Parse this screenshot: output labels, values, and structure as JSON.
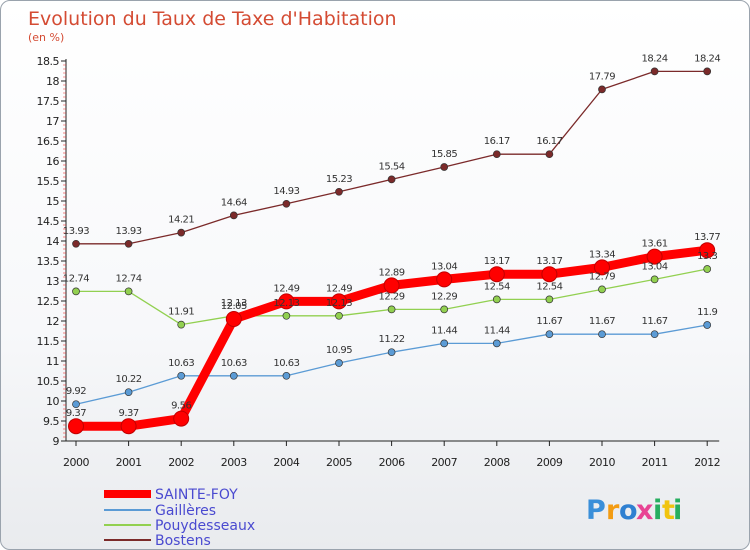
{
  "chart_data": {
    "type": "line",
    "title": "Evolution du Taux de Taxe d'Habitation",
    "subtitle": "(en %)",
    "x": [
      "2000",
      "2001",
      "2002",
      "2003",
      "2004",
      "2005",
      "2006",
      "2007",
      "2008",
      "2009",
      "2010",
      "2011",
      "2012"
    ],
    "ylim": [
      9,
      18.5
    ],
    "yticks": [
      9,
      9.5,
      10,
      10.5,
      11,
      11.5,
      12,
      12.5,
      13,
      13.5,
      14,
      14.5,
      15,
      15.5,
      16,
      16.5,
      17,
      17.5,
      18,
      18.5
    ],
    "grid": false,
    "legend_position": "bottom-left",
    "series": [
      {
        "name": "SAINTE-FOY",
        "color": "#ff0000",
        "values": [
          9.37,
          9.37,
          9.56,
          12.05,
          12.49,
          12.49,
          12.89,
          13.04,
          13.17,
          13.17,
          13.34,
          13.61,
          13.77
        ]
      },
      {
        "name": "Gaillères",
        "color": "#5b9bd5",
        "values": [
          9.92,
          10.22,
          10.63,
          10.63,
          10.63,
          10.95,
          11.22,
          11.44,
          11.44,
          11.67,
          11.67,
          11.67,
          11.9
        ]
      },
      {
        "name": "Pouydesseaux",
        "color": "#92d050",
        "values": [
          12.74,
          12.74,
          11.91,
          12.13,
          12.13,
          12.13,
          12.29,
          12.29,
          12.54,
          12.54,
          12.79,
          13.04,
          13.3
        ]
      },
      {
        "name": "Bostens",
        "color": "#7b2a2a",
        "values": [
          13.93,
          13.93,
          14.21,
          14.64,
          14.93,
          15.23,
          15.54,
          15.85,
          16.17,
          16.17,
          17.79,
          18.24,
          18.24
        ]
      }
    ]
  },
  "brand": {
    "letters": [
      "P",
      "r",
      "o",
      "x",
      "i",
      "t",
      "i"
    ],
    "colors": [
      "#3a8fd9",
      "#f39c12",
      "#2f80d1",
      "#e84393",
      "#27ae60",
      "#f1c40f",
      "#27ae60"
    ]
  }
}
